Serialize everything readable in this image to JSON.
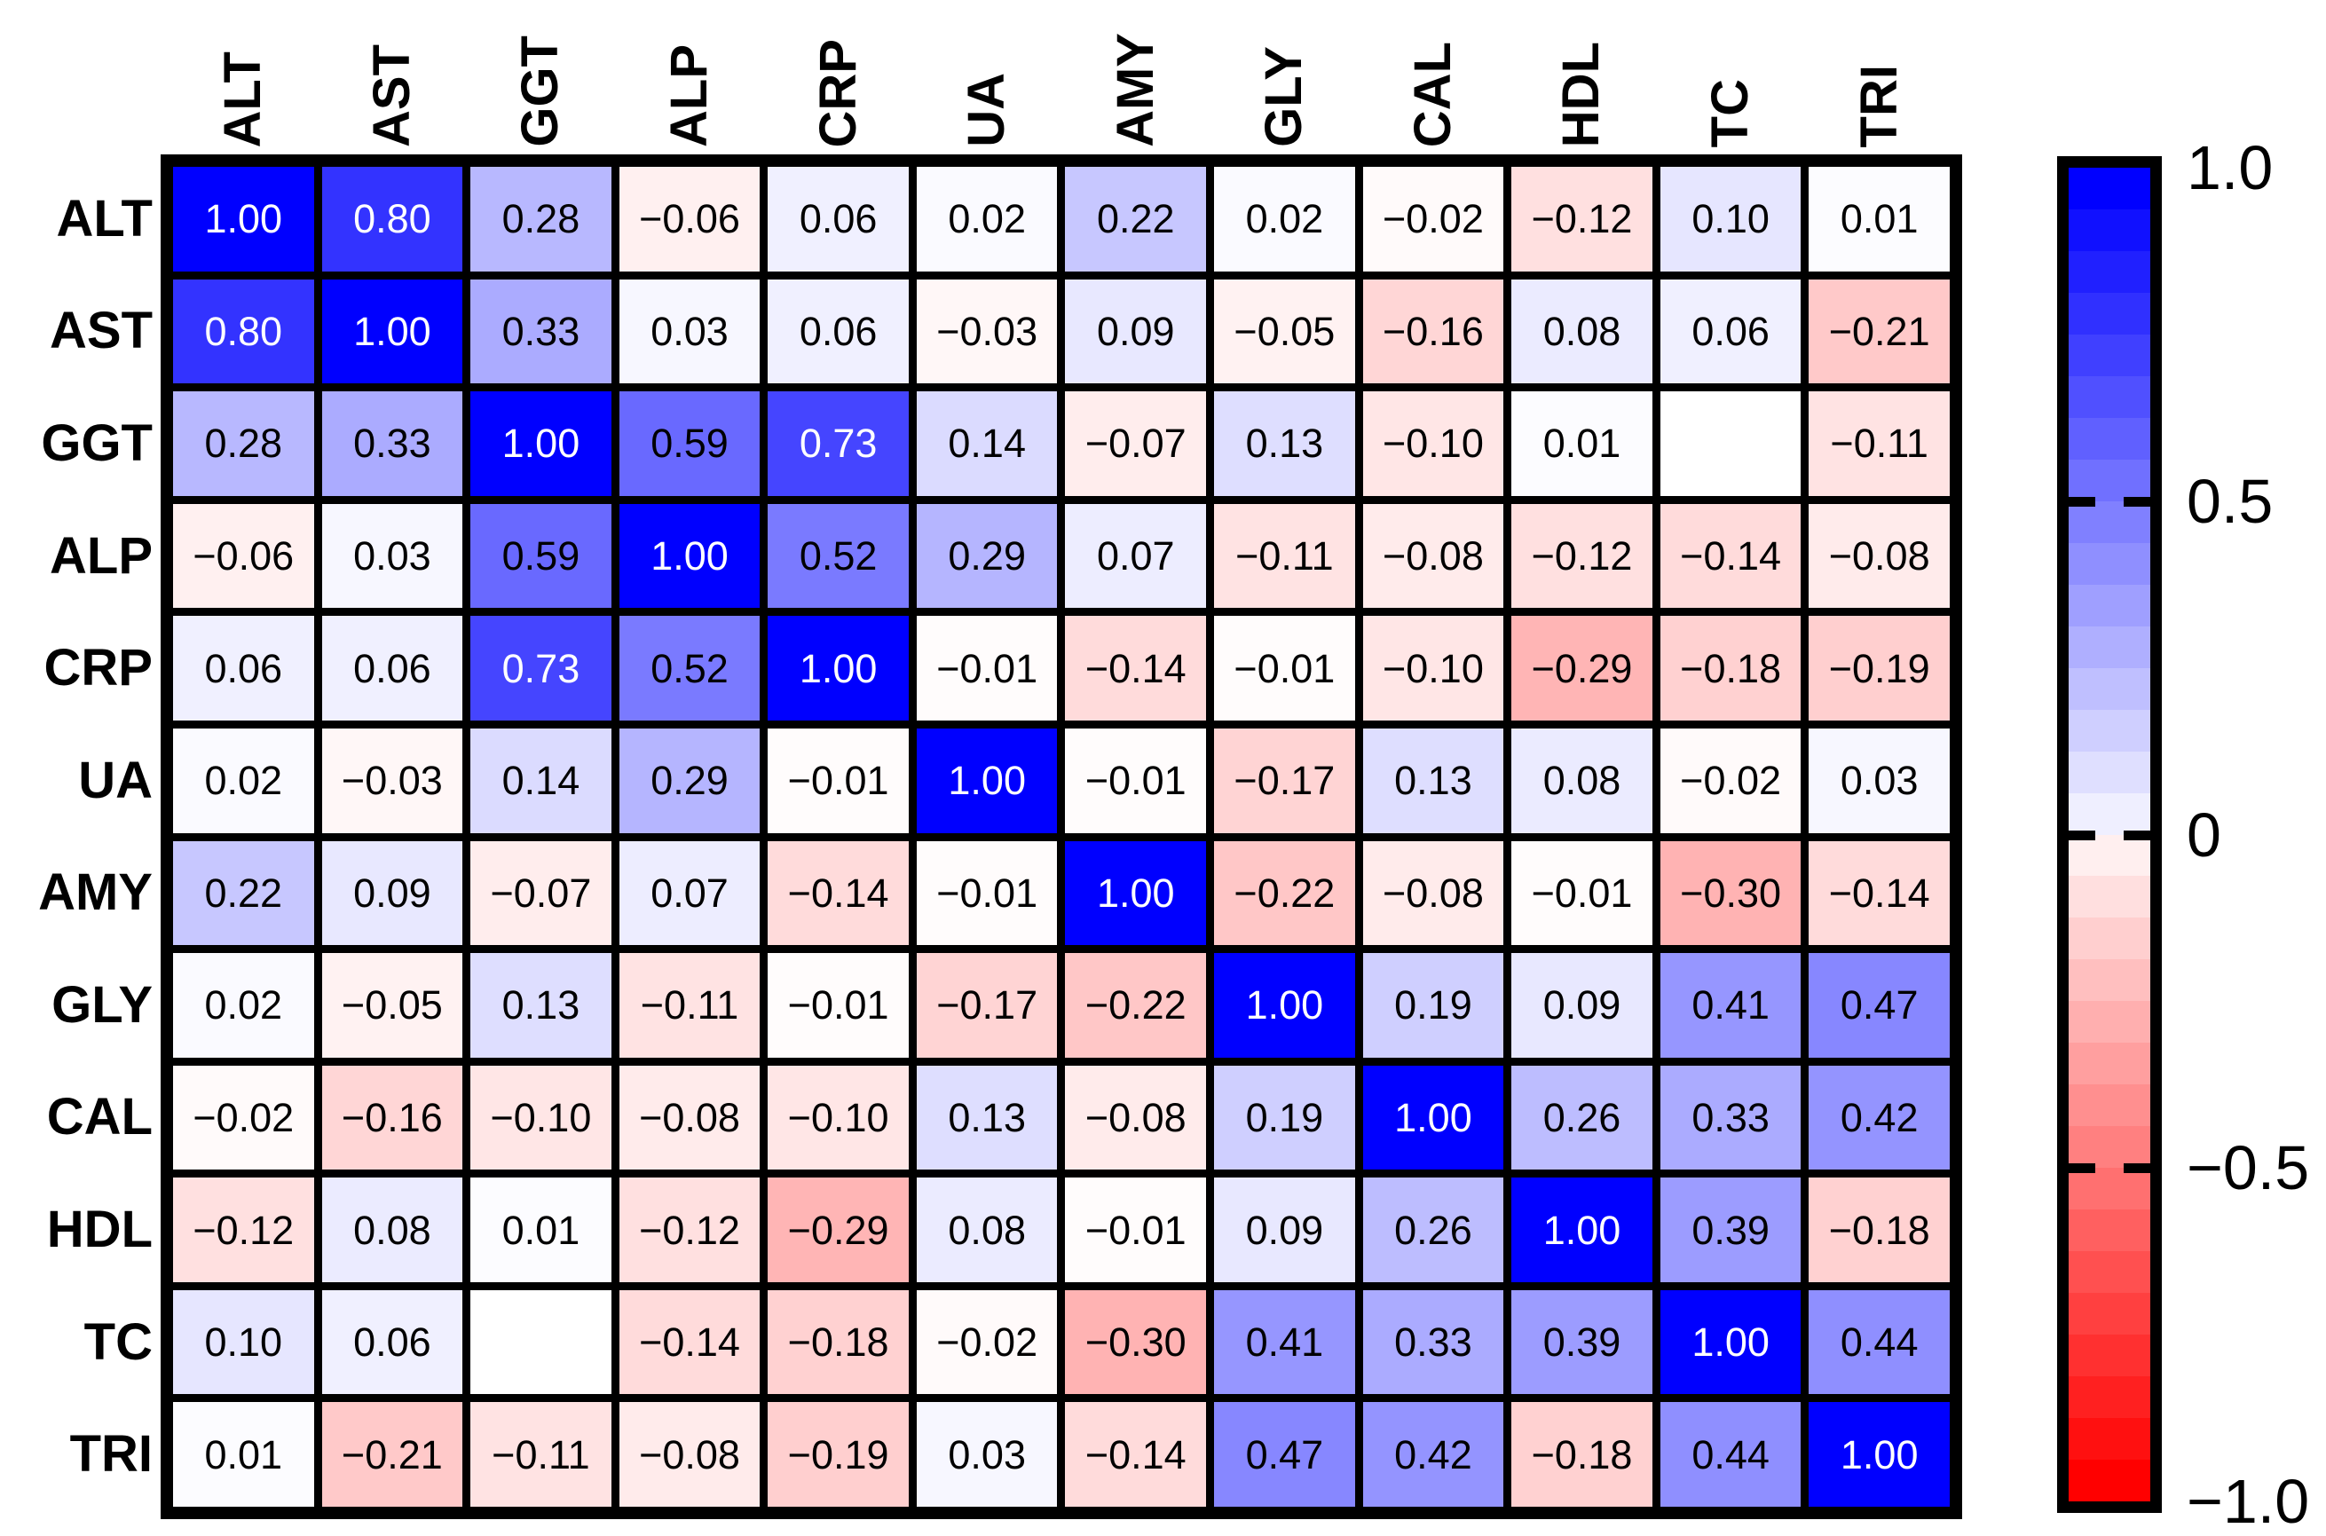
{
  "figure": {
    "type": "correlation-matrix-heatmap",
    "background": "#ffffff",
    "grid_line_color": "#000000",
    "positive_color": "#0000ff",
    "zero_color": "#ffffff",
    "negative_color": "#ff0000",
    "white_text_threshold": 0.7
  },
  "chart_data": {
    "type": "heatmap",
    "title": "",
    "variables": [
      "ALT",
      "AST",
      "GGT",
      "ALP",
      "CRP",
      "UA",
      "AMY",
      "GLY",
      "CAL",
      "HDL",
      "TC",
      "TRI"
    ],
    "matrix": [
      [
        1.0,
        0.8,
        0.28,
        -0.06,
        0.06,
        0.02,
        0.22,
        0.02,
        -0.02,
        -0.12,
        0.1,
        0.01
      ],
      [
        0.8,
        1.0,
        0.33,
        0.03,
        0.06,
        -0.03,
        0.09,
        -0.05,
        -0.16,
        0.08,
        0.06,
        -0.21
      ],
      [
        0.28,
        0.33,
        1.0,
        0.59,
        0.73,
        0.14,
        -0.07,
        0.13,
        -0.1,
        0.01,
        null,
        -0.11
      ],
      [
        -0.06,
        0.03,
        0.59,
        1.0,
        0.52,
        0.29,
        0.07,
        -0.11,
        -0.08,
        -0.12,
        -0.14,
        -0.08
      ],
      [
        0.06,
        0.06,
        0.73,
        0.52,
        1.0,
        -0.01,
        -0.14,
        -0.01,
        -0.1,
        -0.29,
        -0.18,
        -0.19
      ],
      [
        0.02,
        -0.03,
        0.14,
        0.29,
        -0.01,
        1.0,
        -0.01,
        -0.17,
        0.13,
        0.08,
        -0.02,
        0.03
      ],
      [
        0.22,
        0.09,
        -0.07,
        0.07,
        -0.14,
        -0.01,
        1.0,
        -0.22,
        -0.08,
        -0.01,
        -0.3,
        -0.14
      ],
      [
        0.02,
        -0.05,
        0.13,
        -0.11,
        -0.01,
        -0.17,
        -0.22,
        1.0,
        0.19,
        0.09,
        0.41,
        0.47
      ],
      [
        -0.02,
        -0.16,
        -0.1,
        -0.08,
        -0.1,
        0.13,
        -0.08,
        0.19,
        1.0,
        0.26,
        0.33,
        0.42
      ],
      [
        -0.12,
        0.08,
        0.01,
        -0.12,
        -0.29,
        0.08,
        -0.01,
        0.09,
        0.26,
        1.0,
        0.39,
        -0.18
      ],
      [
        0.1,
        0.06,
        null,
        -0.14,
        -0.18,
        -0.02,
        -0.3,
        0.41,
        0.33,
        0.39,
        1.0,
        0.44
      ],
      [
        0.01,
        -0.21,
        -0.11,
        -0.08,
        -0.19,
        0.03,
        -0.14,
        0.47,
        0.42,
        -0.18,
        0.44,
        1.0
      ]
    ],
    "missing_pairs": [
      [
        "GGT",
        "TC"
      ],
      [
        "TC",
        "GGT"
      ]
    ],
    "value_decimals": 2,
    "vmin": -1.0,
    "vmax": 1.0,
    "colorbar": {
      "side": "right",
      "levels": 32,
      "tick_labels": [
        "1.0",
        "0.5",
        "0",
        "−0.5",
        "−1.0"
      ],
      "tick_values": [
        1.0,
        0.5,
        0.0,
        -0.5,
        -1.0
      ]
    }
  }
}
